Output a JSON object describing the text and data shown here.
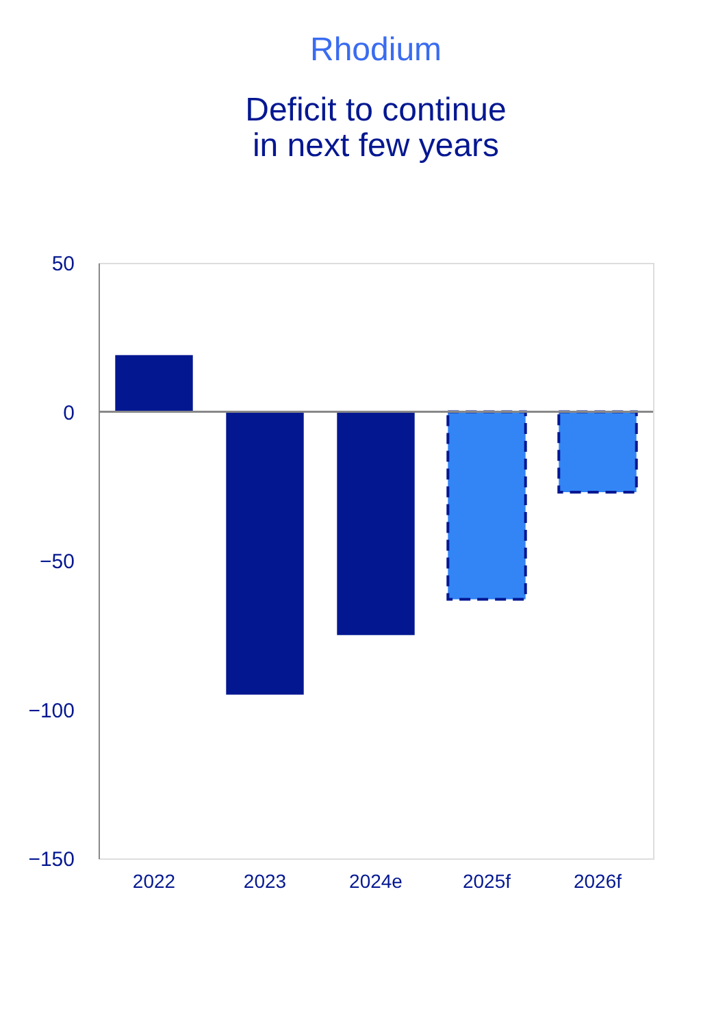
{
  "chart_data": {
    "type": "bar",
    "title": "Rhodium",
    "subtitle": [
      "Deficit to continue",
      "in next few years"
    ],
    "categories": [
      "2022",
      "2023",
      "2024e",
      "2025f",
      "2026f"
    ],
    "series": [
      {
        "color": "#031791",
        "values": [
          19,
          -95,
          -75,
          null,
          null
        ]
      },
      {
        "color": "#3385f5",
        "values": [
          null,
          null,
          null,
          -63,
          -27
        ],
        "line_style": "dashed"
      }
    ],
    "ylim": [
      -150,
      50
    ],
    "yticks": [
      -150,
      -100,
      -50,
      0,
      50
    ]
  }
}
